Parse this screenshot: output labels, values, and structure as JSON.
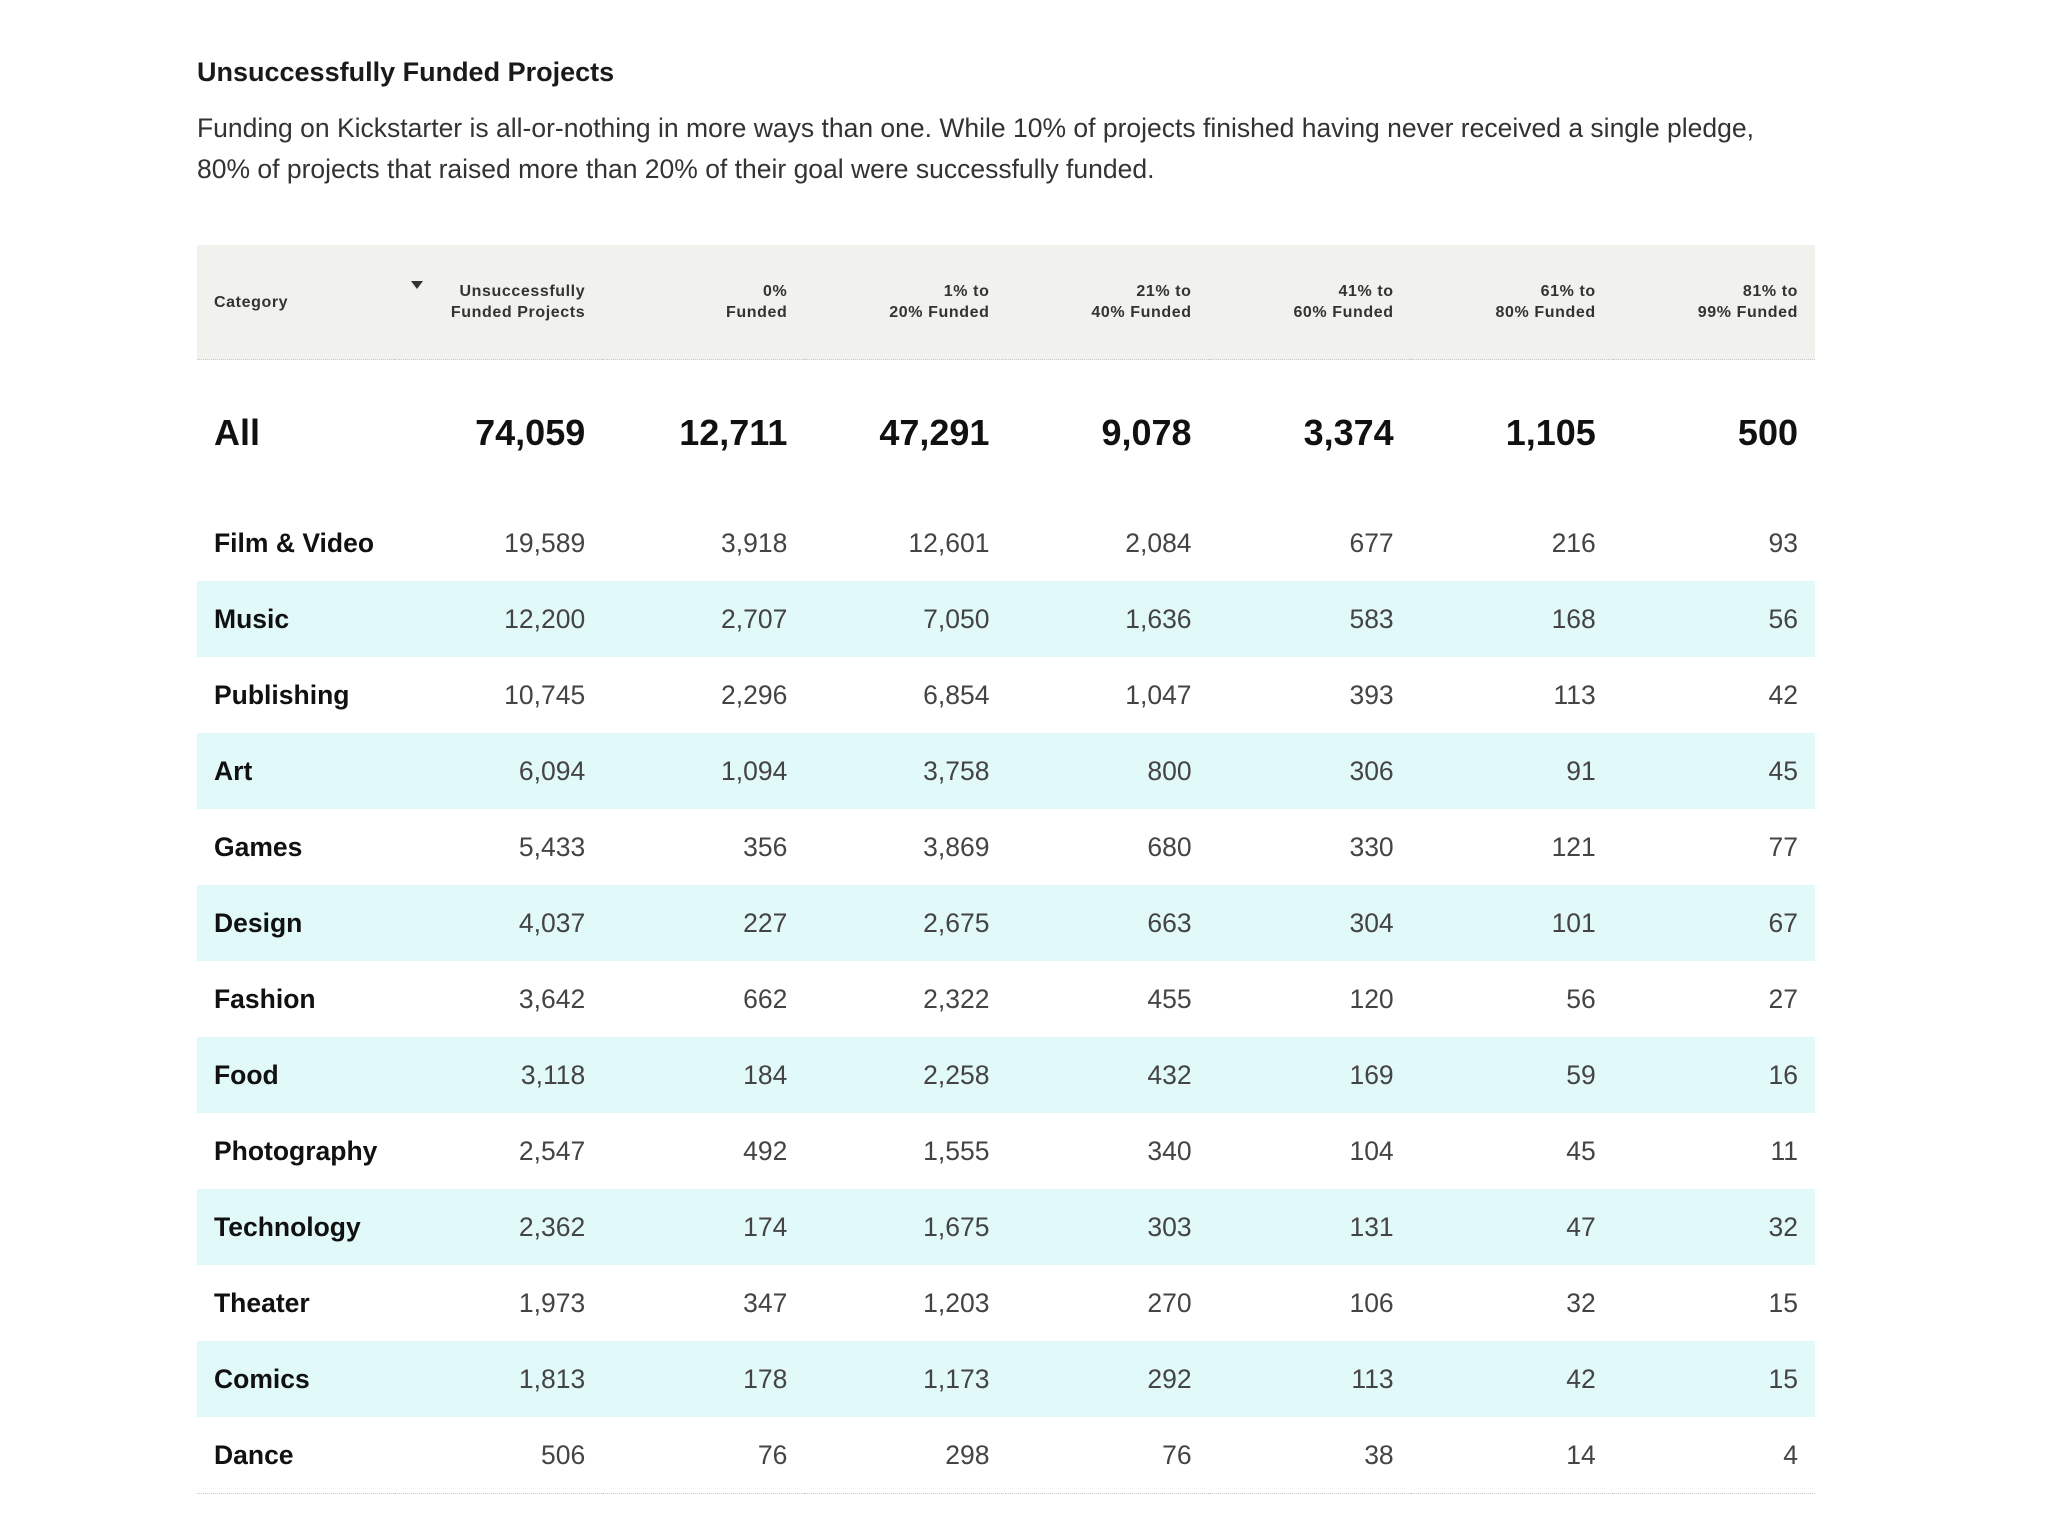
{
  "title": "Unsuccessfully Funded Projects",
  "intro": "Funding on Kickstarter is all-or-nothing in more ways than one. While 10% of projects finished having never received a single pledge, 80% of projects that raised more than 20% of their goal were successfully funded.",
  "table": {
    "headers": [
      [
        "Category"
      ],
      [
        "Unsuccessfully",
        "Funded Projects"
      ],
      [
        "0%",
        "Funded"
      ],
      [
        "1% to",
        "20% Funded"
      ],
      [
        "21% to",
        "40% Funded"
      ],
      [
        "41% to",
        "60% Funded"
      ],
      [
        "61% to",
        "80% Funded"
      ],
      [
        "81% to",
        "99% Funded"
      ]
    ],
    "sort_icon": "sort-descending-icon",
    "all_row": [
      "All",
      "74,059",
      "12,711",
      "47,291",
      "9,078",
      "3,374",
      "1,105",
      "500"
    ],
    "rows": [
      [
        "Film & Video",
        "19,589",
        "3,918",
        "12,601",
        "2,084",
        "677",
        "216",
        "93"
      ],
      [
        "Music",
        "12,200",
        "2,707",
        "7,050",
        "1,636",
        "583",
        "168",
        "56"
      ],
      [
        "Publishing",
        "10,745",
        "2,296",
        "6,854",
        "1,047",
        "393",
        "113",
        "42"
      ],
      [
        "Art",
        "6,094",
        "1,094",
        "3,758",
        "800",
        "306",
        "91",
        "45"
      ],
      [
        "Games",
        "5,433",
        "356",
        "3,869",
        "680",
        "330",
        "121",
        "77"
      ],
      [
        "Design",
        "4,037",
        "227",
        "2,675",
        "663",
        "304",
        "101",
        "67"
      ],
      [
        "Fashion",
        "3,642",
        "662",
        "2,322",
        "455",
        "120",
        "56",
        "27"
      ],
      [
        "Food",
        "3,118",
        "184",
        "2,258",
        "432",
        "169",
        "59",
        "16"
      ],
      [
        "Photography",
        "2,547",
        "492",
        "1,555",
        "340",
        "104",
        "45",
        "11"
      ],
      [
        "Technology",
        "2,362",
        "174",
        "1,675",
        "303",
        "131",
        "47",
        "32"
      ],
      [
        "Theater",
        "1,973",
        "347",
        "1,203",
        "270",
        "106",
        "32",
        "15"
      ],
      [
        "Comics",
        "1,813",
        "178",
        "1,173",
        "292",
        "113",
        "42",
        "15"
      ],
      [
        "Dance",
        "506",
        "76",
        "298",
        "76",
        "38",
        "14",
        "4"
      ]
    ]
  },
  "colors": {
    "header_bg": "#f1f1ed",
    "sorted_header_bg": "#e1f7f8",
    "alt_row_bg": "#e2f9fa"
  }
}
